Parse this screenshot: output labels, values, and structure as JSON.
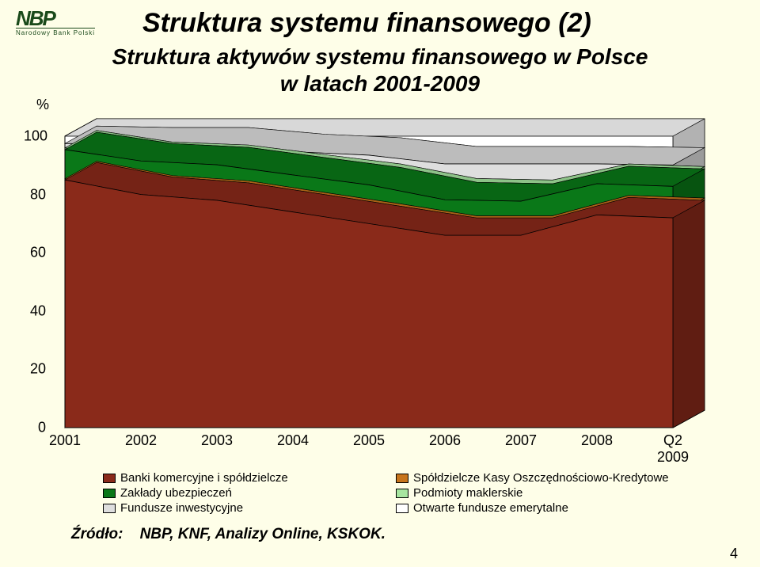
{
  "logo": {
    "mark": "NBP",
    "sub": "Narodowy  Bank  Polski"
  },
  "title": "Struktura systemu finansowego (2)",
  "subtitle_line1": "Struktura aktywów systemu finansowego w Polsce",
  "subtitle_line2": "w latach 2001-2009",
  "chart": {
    "type": "area-3d-stacked",
    "ylabel": "%",
    "ylim": [
      0,
      100
    ],
    "ytick_step": 20,
    "yticks": [
      "0",
      "20",
      "40",
      "60",
      "80",
      "100"
    ],
    "categories": [
      "2001",
      "2002",
      "2003",
      "2004",
      "2005",
      "2006",
      "2007",
      "2008",
      "Q2 2009"
    ],
    "series": [
      {
        "name": "Banki komercyjne i spółdzielcze",
        "color": "#8a2a1a",
        "values": [
          85,
          80,
          78,
          74,
          70,
          66,
          66,
          73,
          72
        ]
      },
      {
        "name": "Spółdzielcze Kasy Oszczędnościowo-Kredytowe",
        "color": "#c7741c",
        "values": [
          0.4,
          0.5,
          0.7,
          0.7,
          0.8,
          0.7,
          0.7,
          0.7,
          0.8
        ]
      },
      {
        "name": "Zakłady ubezpieczeń",
        "color": "#0a7818",
        "values": [
          10,
          11,
          11.5,
          12,
          12.5,
          11.5,
          11,
          10,
          10
        ]
      },
      {
        "name": "Podmioty maklerskie",
        "color": "#a7e6a0",
        "values": [
          0.6,
          0.5,
          0.8,
          1.0,
          1.2,
          1.3,
          1.3,
          0.8,
          0.8
        ]
      },
      {
        "name": "Fundusze inwestycyjne",
        "color": "#dedede",
        "values": [
          1.5,
          5,
          6,
          7,
          9,
          11,
          11.5,
          6,
          6.5
        ]
      },
      {
        "name": "Otwarte fundusze emerytalne",
        "color": "#ffffff",
        "values": [
          2.5,
          3,
          3,
          5.3,
          6.5,
          9.5,
          9.5,
          9.5,
          9.9
        ]
      }
    ],
    "plot_bg": "#fefee8",
    "grid_color": "#000000",
    "line_width": 1
  },
  "source_label": "Źródło:",
  "source_text": "NBP, KNF, Analizy Online, KSKOK.",
  "page_number": "4"
}
